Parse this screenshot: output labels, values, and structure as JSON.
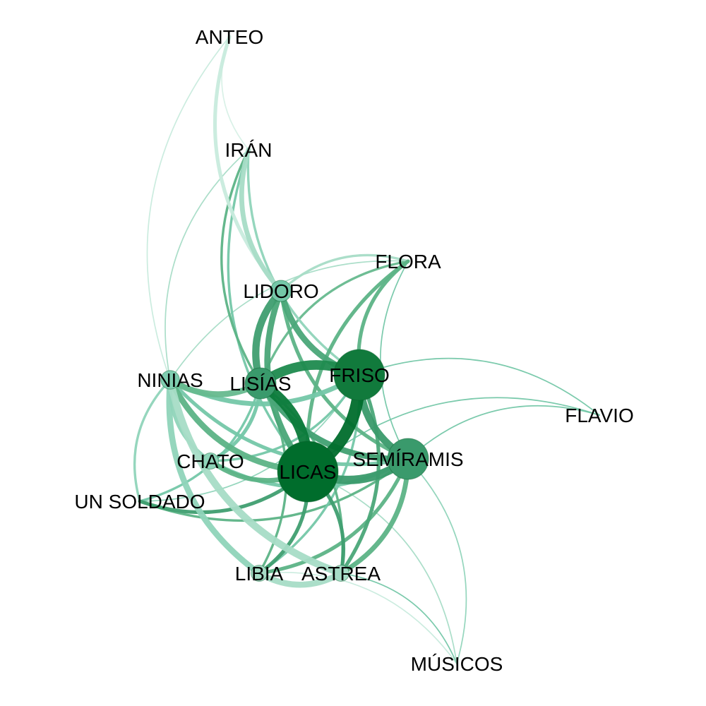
{
  "graph": {
    "nodes": [
      {
        "id": "ANTEO",
        "label": "ANTEO",
        "weight": 0,
        "color": "#ffffff"
      },
      {
        "id": "IRAN",
        "label": "IRÁN",
        "weight": 0,
        "color": "#ffffff"
      },
      {
        "id": "FLORA",
        "label": "FLORA",
        "weight": 0,
        "color": "#ffffff"
      },
      {
        "id": "LIDORO",
        "label": "LIDORO",
        "weight": 2,
        "color": "#74c7a8"
      },
      {
        "id": "NINIAS",
        "label": "NINIAS",
        "weight": 1.5,
        "color": "#7fcdb0"
      },
      {
        "id": "LISIAS",
        "label": "LISÍAS",
        "weight": 4,
        "color": "#3a9a6c"
      },
      {
        "id": "FRISO",
        "label": "FRISO",
        "weight": 8,
        "color": "#117a3c"
      },
      {
        "id": "FLAVIO",
        "label": "FLAVIO",
        "weight": 0,
        "color": "#ffffff"
      },
      {
        "id": "CHATO",
        "label": "CHATO",
        "weight": 1,
        "color": "#8fd4b9"
      },
      {
        "id": "LICAS",
        "label": "LICAS",
        "weight": 10,
        "color": "#006d2c"
      },
      {
        "id": "SEMIRAMIS",
        "label": "SEMÍRAMIS",
        "weight": 6,
        "color": "#3a9a6c"
      },
      {
        "id": "UN_SOLDADO",
        "label": "UN SOLDADO",
        "weight": 0,
        "color": "#ffffff"
      },
      {
        "id": "LIBIA",
        "label": "LIBIA",
        "weight": 1,
        "color": "#a6dcc6"
      },
      {
        "id": "ASTREA",
        "label": "ASTREA",
        "weight": 1,
        "color": "#a6dcc6"
      },
      {
        "id": "MUSICOS",
        "label": "MÚSICOS",
        "weight": 0,
        "color": "#ffffff"
      }
    ],
    "edges": [
      {
        "source": "LICAS",
        "target": "FRISO",
        "weight": 10,
        "color": "#006d2c"
      },
      {
        "source": "LICAS",
        "target": "LISIAS",
        "weight": 9,
        "color": "#0b7a3a"
      },
      {
        "source": "FRISO",
        "target": "LISIAS",
        "weight": 8,
        "color": "#1e8a4e"
      },
      {
        "source": "LICAS",
        "target": "SEMIRAMIS",
        "weight": 7,
        "color": "#3a9a6c"
      },
      {
        "source": "FRISO",
        "target": "SEMIRAMIS",
        "weight": 6,
        "color": "#3a9a6c"
      },
      {
        "source": "LISIAS",
        "target": "SEMIRAMIS",
        "weight": 5,
        "color": "#41a072"
      },
      {
        "source": "LIDORO",
        "target": "LISIAS",
        "weight": 6,
        "color": "#3f9e70"
      },
      {
        "source": "LIDORO",
        "target": "FRISO",
        "weight": 5,
        "color": "#4aa678"
      },
      {
        "source": "LIDORO",
        "target": "LICAS",
        "weight": 5,
        "color": "#4aa678"
      },
      {
        "source": "LIDORO",
        "target": "SEMIRAMIS",
        "weight": 3,
        "color": "#5cb386"
      },
      {
        "source": "NINIAS",
        "target": "LISIAS",
        "weight": 5,
        "color": "#66b98e"
      },
      {
        "source": "NINIAS",
        "target": "LICAS",
        "weight": 5,
        "color": "#5cb386"
      },
      {
        "source": "NINIAS",
        "target": "FRISO",
        "weight": 4,
        "color": "#74c7a8"
      },
      {
        "source": "NINIAS",
        "target": "SEMIRAMIS",
        "weight": 3,
        "color": "#74c7a8"
      },
      {
        "source": "NINIAS",
        "target": "LIBIA",
        "weight": 5,
        "color": "#8fd4b9"
      },
      {
        "source": "NINIAS",
        "target": "ASTREA",
        "weight": 6,
        "color": "#a6dcc6"
      },
      {
        "source": "NINIAS",
        "target": "UN_SOLDADO",
        "weight": 2,
        "color": "#8fd4b9"
      },
      {
        "source": "NINIAS",
        "target": "CHATO",
        "weight": 3,
        "color": "#8fd4b9"
      },
      {
        "source": "FLORA",
        "target": "FRISO",
        "weight": 3,
        "color": "#5cb386"
      },
      {
        "source": "FLORA",
        "target": "LICAS",
        "weight": 3,
        "color": "#5cb386"
      },
      {
        "source": "FLORA",
        "target": "LISIAS",
        "weight": 2,
        "color": "#66b98e"
      },
      {
        "source": "FLORA",
        "target": "LIDORO",
        "weight": 2,
        "color": "#a6dcc6"
      },
      {
        "source": "FLORA",
        "target": "SEMIRAMIS",
        "weight": 1,
        "color": "#74c7a8"
      },
      {
        "source": "FLORA",
        "target": "NINIAS",
        "weight": 1,
        "color": "#a6dcc6"
      },
      {
        "source": "IRAN",
        "target": "LIDORO",
        "weight": 4,
        "color": "#a6dcc6"
      },
      {
        "source": "IRAN",
        "target": "LICAS",
        "weight": 2,
        "color": "#74c7a8"
      },
      {
        "source": "IRAN",
        "target": "LISIAS",
        "weight": 2,
        "color": "#5cb386"
      },
      {
        "source": "IRAN",
        "target": "FRISO",
        "weight": 2,
        "color": "#8fd4b9"
      },
      {
        "source": "IRAN",
        "target": "NINIAS",
        "weight": 1,
        "color": "#a6dcc6"
      },
      {
        "source": "ANTEO",
        "target": "LIDORO",
        "weight": 3,
        "color": "#c8ebdd"
      },
      {
        "source": "ANTEO",
        "target": "NINIAS",
        "weight": 1,
        "color": "#c8ebdd"
      },
      {
        "source": "ANTEO",
        "target": "IRAN",
        "weight": 1,
        "color": "#d7f0e6"
      },
      {
        "source": "FLAVIO",
        "target": "FRISO",
        "weight": 1,
        "color": "#74c7a8"
      },
      {
        "source": "FLAVIO",
        "target": "LICAS",
        "weight": 1,
        "color": "#74c7a8"
      },
      {
        "source": "FLAVIO",
        "target": "SEMIRAMIS",
        "weight": 1,
        "color": "#74c7a8"
      },
      {
        "source": "CHATO",
        "target": "LICAS",
        "weight": 4,
        "color": "#5cb386"
      },
      {
        "source": "CHATO",
        "target": "LISIAS",
        "weight": 3,
        "color": "#74c7a8"
      },
      {
        "source": "CHATO",
        "target": "SEMIRAMIS",
        "weight": 3,
        "color": "#74c7a8"
      },
      {
        "source": "CHATO",
        "target": "FRISO",
        "weight": 2,
        "color": "#74c7a8"
      },
      {
        "source": "UN_SOLDADO",
        "target": "LICAS",
        "weight": 3,
        "color": "#3f9e70"
      },
      {
        "source": "UN_SOLDADO",
        "target": "SEMIRAMIS",
        "weight": 2,
        "color": "#5cb386"
      },
      {
        "source": "UN_SOLDADO",
        "target": "LISIAS",
        "weight": 2,
        "color": "#74c7a8"
      },
      {
        "source": "UN_SOLDADO",
        "target": "FRISO",
        "weight": 1,
        "color": "#8fd4b9"
      },
      {
        "source": "LIBIA",
        "target": "LICAS",
        "weight": 3,
        "color": "#3f9e70"
      },
      {
        "source": "LIBIA",
        "target": "SEMIRAMIS",
        "weight": 3,
        "color": "#5cb386"
      },
      {
        "source": "LIBIA",
        "target": "LISIAS",
        "weight": 2,
        "color": "#5cb386"
      },
      {
        "source": "LIBIA",
        "target": "FRISO",
        "weight": 2,
        "color": "#74c7a8"
      },
      {
        "source": "LIBIA",
        "target": "ASTREA",
        "weight": 5,
        "color": "#a6dcc6"
      },
      {
        "source": "ASTREA",
        "target": "LICAS",
        "weight": 3,
        "color": "#3f9e70"
      },
      {
        "source": "ASTREA",
        "target": "SEMIRAMIS",
        "weight": 4,
        "color": "#5cb386"
      },
      {
        "source": "ASTREA",
        "target": "FRISO",
        "weight": 3,
        "color": "#4aa678"
      },
      {
        "source": "ASTREA",
        "target": "LISIAS",
        "weight": 2,
        "color": "#5cb386"
      },
      {
        "source": "MUSICOS",
        "target": "SEMIRAMIS",
        "weight": 1,
        "color": "#8fd4b9"
      },
      {
        "source": "MUSICOS",
        "target": "LIBIA",
        "weight": 1,
        "color": "#c8ebdd"
      },
      {
        "source": "MUSICOS",
        "target": "ASTREA",
        "weight": 1,
        "color": "#74c7a8"
      },
      {
        "source": "MUSICOS",
        "target": "LICAS",
        "weight": 1,
        "color": "#a6dcc6"
      }
    ]
  }
}
